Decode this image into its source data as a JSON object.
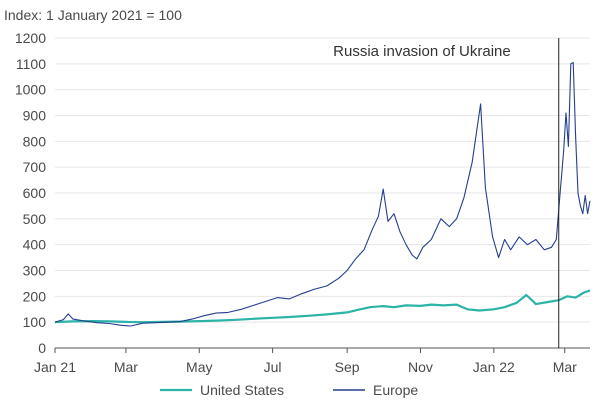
{
  "chart_data": {
    "type": "line",
    "title": "",
    "ylabel": "Index: 1 January 2021 = 100",
    "xlabel": "",
    "ylim": [
      0,
      1200
    ],
    "yticks": [
      0,
      100,
      200,
      300,
      400,
      500,
      600,
      700,
      800,
      900,
      1000,
      1100,
      1200
    ],
    "xlim": [
      "2021-01-01",
      "2022-03-22"
    ],
    "xticks": [
      {
        "date": "2021-01-01",
        "label": "Jan 21"
      },
      {
        "date": "2021-03-01",
        "label": "Mar"
      },
      {
        "date": "2021-05-01",
        "label": "May"
      },
      {
        "date": "2021-07-01",
        "label": "Jul"
      },
      {
        "date": "2021-09-01",
        "label": "Sep"
      },
      {
        "date": "2021-11-01",
        "label": "Nov"
      },
      {
        "date": "2022-01-01",
        "label": "Jan 22"
      },
      {
        "date": "2022-03-01",
        "label": "Mar"
      }
    ],
    "grid": "horizontal",
    "legend": "bottom",
    "annotations": [
      {
        "text": "Russia invasion of Ukraine",
        "date": "2022-02-24"
      }
    ],
    "series": [
      {
        "name": "United States",
        "color": "#2bb3a8",
        "points": [
          [
            "2021-01-01",
            100
          ],
          [
            "2021-01-15",
            103
          ],
          [
            "2021-02-01",
            104
          ],
          [
            "2021-02-15",
            103
          ],
          [
            "2021-03-01",
            101
          ],
          [
            "2021-03-15",
            100
          ],
          [
            "2021-04-01",
            101
          ],
          [
            "2021-04-15",
            102
          ],
          [
            "2021-05-01",
            104
          ],
          [
            "2021-05-15",
            106
          ],
          [
            "2021-06-01",
            109
          ],
          [
            "2021-06-15",
            113
          ],
          [
            "2021-07-01",
            117
          ],
          [
            "2021-07-15",
            120
          ],
          [
            "2021-08-01",
            125
          ],
          [
            "2021-08-15",
            130
          ],
          [
            "2021-09-01",
            138
          ],
          [
            "2021-09-10",
            148
          ],
          [
            "2021-09-20",
            158
          ],
          [
            "2021-10-01",
            162
          ],
          [
            "2021-10-10",
            158
          ],
          [
            "2021-10-20",
            165
          ],
          [
            "2021-11-01",
            163
          ],
          [
            "2021-11-10",
            168
          ],
          [
            "2021-11-20",
            165
          ],
          [
            "2021-12-01",
            168
          ],
          [
            "2021-12-10",
            150
          ],
          [
            "2021-12-20",
            145
          ],
          [
            "2022-01-01",
            150
          ],
          [
            "2022-01-10",
            158
          ],
          [
            "2022-01-20",
            175
          ],
          [
            "2022-01-28",
            205
          ],
          [
            "2022-02-05",
            170
          ],
          [
            "2022-02-15",
            178
          ],
          [
            "2022-02-24",
            185
          ],
          [
            "2022-03-03",
            200
          ],
          [
            "2022-03-10",
            195
          ],
          [
            "2022-03-17",
            215
          ],
          [
            "2022-03-22",
            222
          ]
        ]
      },
      {
        "name": "Europe",
        "color": "#243f8f",
        "points": [
          [
            "2021-01-01",
            100
          ],
          [
            "2021-01-08",
            110
          ],
          [
            "2021-01-12",
            132
          ],
          [
            "2021-01-16",
            112
          ],
          [
            "2021-01-25",
            105
          ],
          [
            "2021-02-05",
            98
          ],
          [
            "2021-02-15",
            95
          ],
          [
            "2021-02-25",
            88
          ],
          [
            "2021-03-05",
            85
          ],
          [
            "2021-03-15",
            96
          ],
          [
            "2021-03-25",
            98
          ],
          [
            "2021-04-05",
            100
          ],
          [
            "2021-04-15",
            102
          ],
          [
            "2021-04-25",
            112
          ],
          [
            "2021-05-05",
            125
          ],
          [
            "2021-05-15",
            135
          ],
          [
            "2021-05-25",
            138
          ],
          [
            "2021-06-05",
            150
          ],
          [
            "2021-06-15",
            165
          ],
          [
            "2021-06-25",
            180
          ],
          [
            "2021-07-05",
            195
          ],
          [
            "2021-07-15",
            190
          ],
          [
            "2021-07-25",
            210
          ],
          [
            "2021-08-05",
            228
          ],
          [
            "2021-08-15",
            240
          ],
          [
            "2021-08-25",
            270
          ],
          [
            "2021-09-01",
            300
          ],
          [
            "2021-09-08",
            345
          ],
          [
            "2021-09-15",
            380
          ],
          [
            "2021-09-22",
            460
          ],
          [
            "2021-09-27",
            510
          ],
          [
            "2021-10-01",
            615
          ],
          [
            "2021-10-05",
            490
          ],
          [
            "2021-10-10",
            520
          ],
          [
            "2021-10-15",
            450
          ],
          [
            "2021-10-20",
            400
          ],
          [
            "2021-10-25",
            360
          ],
          [
            "2021-10-29",
            345
          ],
          [
            "2021-11-03",
            390
          ],
          [
            "2021-11-10",
            420
          ],
          [
            "2021-11-18",
            500
          ],
          [
            "2021-11-25",
            470
          ],
          [
            "2021-12-01",
            500
          ],
          [
            "2021-12-07",
            580
          ],
          [
            "2021-12-14",
            720
          ],
          [
            "2021-12-21",
            945
          ],
          [
            "2021-12-25",
            620
          ],
          [
            "2021-12-31",
            430
          ],
          [
            "2022-01-05",
            350
          ],
          [
            "2022-01-10",
            420
          ],
          [
            "2022-01-15",
            380
          ],
          [
            "2022-01-22",
            430
          ],
          [
            "2022-01-29",
            400
          ],
          [
            "2022-02-05",
            420
          ],
          [
            "2022-02-12",
            380
          ],
          [
            "2022-02-18",
            390
          ],
          [
            "2022-02-22",
            420
          ],
          [
            "2022-02-25",
            590
          ],
          [
            "2022-02-28",
            760
          ],
          [
            "2022-03-02",
            910
          ],
          [
            "2022-03-04",
            780
          ],
          [
            "2022-03-06",
            1100
          ],
          [
            "2022-03-08",
            1105
          ],
          [
            "2022-03-10",
            820
          ],
          [
            "2022-03-12",
            600
          ],
          [
            "2022-03-14",
            550
          ],
          [
            "2022-03-16",
            520
          ],
          [
            "2022-03-18",
            590
          ],
          [
            "2022-03-20",
            520
          ],
          [
            "2022-03-22",
            570
          ]
        ]
      }
    ]
  }
}
